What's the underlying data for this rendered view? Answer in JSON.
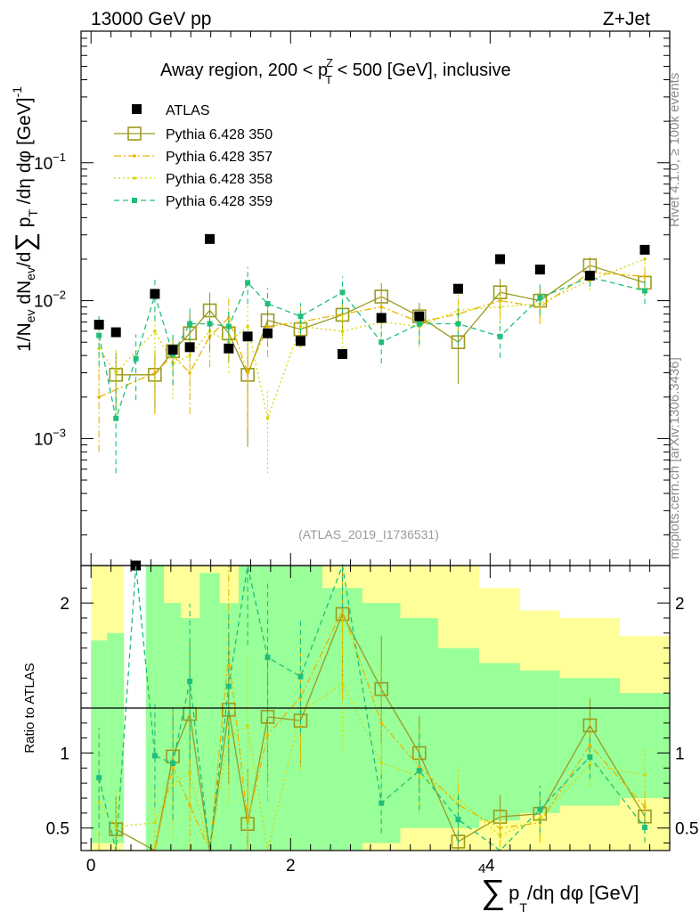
{
  "header": {
    "left": "13000 GeV pp",
    "right": "Z+Jet"
  },
  "side_labels": {
    "rivet": "Rivet 4.1.0, ≥ 100k events",
    "mcplots": "mcplots.cern.ch [arXiv:1306.3436]"
  },
  "chart_data": {
    "type": "scatter",
    "title": "Away region, 200 < p_T^Z < 500 [GeV], inclusive",
    "title_parts": {
      "a": "Away region, 200 < p",
      "sup": "Z",
      "sub": "T",
      "b": " < 500 [GeV], inclusive"
    },
    "analysis_id": "(ATLAS_2019_I1736531)",
    "xlabel": "∑ p_T/dη dφ [GeV]",
    "xlabel_parts": {
      "sum": "∑",
      "p": "p",
      "sub": "T",
      "rest": "/dη dφ [GeV]"
    },
    "ylabel_main": "1/N_ev dN_ev/d∑ p_T/dη dφ [GeV]^-1",
    "ylabel_ratio": "Ratio to ATLAS",
    "xlim": [
      -0.1,
      5.8
    ],
    "ylim_main": [
      0.00012,
      0.9
    ],
    "ylim_ratio": [
      0.35,
      2.25
    ],
    "x_ticks": [
      0,
      2,
      4
    ],
    "y_ticks_main": [
      {
        "value": 0.001,
        "exp": "−3"
      },
      {
        "value": 0.01,
        "exp": "−2"
      },
      {
        "value": 0.1,
        "exp": "−1"
      }
    ],
    "y_ticks_ratio": [
      0.5,
      1,
      2
    ],
    "x": [
      0.08,
      0.25,
      0.45,
      0.64,
      0.82,
      0.99,
      1.19,
      1.38,
      1.57,
      1.77,
      2.1,
      2.52,
      2.91,
      3.29,
      3.68,
      4.1,
      4.5,
      5.0,
      5.55
    ],
    "atlas": [
      0.0067,
      0.0059,
      0.00012,
      0.0112,
      0.0044,
      0.0046,
      0.028,
      0.0045,
      0.0055,
      0.0058,
      0.0051,
      0.0041,
      0.0075,
      0.0077,
      0.0122,
      0.02,
      0.0168,
      0.0152,
      0.0234
    ],
    "series": [
      {
        "name": "Pythia 6.428 350",
        "color": "#9a9a1e",
        "dash": "",
        "marker": "open-square",
        "values": [
          null,
          0.0029,
          null,
          0.0029,
          0.0043,
          0.0058,
          0.0085,
          0.0058,
          0.0029,
          0.0072,
          0.0062,
          0.0079,
          0.0107,
          0.0077,
          0.005,
          0.0115,
          0.01,
          0.018,
          0.0135
        ],
        "err": [
          0,
          0.45,
          0,
          0.45,
          0.3,
          0.38,
          0.35,
          0.38,
          0.7,
          0.35,
          0.25,
          0.3,
          0.25,
          0.25,
          0.5,
          0.25,
          0.25,
          0.15,
          0.2
        ]
      },
      {
        "name": "Pythia 6.428 357",
        "color": "#e8b600",
        "dash": "8,3,2,3",
        "marker": "small",
        "values": [
          0.002,
          null,
          null,
          0.003,
          0.004,
          0.003,
          0.0055,
          0.0075,
          0.003,
          0.0065,
          0.007,
          0.008,
          0.009,
          0.007,
          0.008,
          0.01,
          0.009,
          0.016,
          0.015
        ],
        "err": [
          0.6,
          0,
          0,
          0.5,
          0.4,
          0.5,
          0.4,
          0.4,
          0.6,
          0.4,
          0.3,
          0.3,
          0.3,
          0.3,
          0.3,
          0.25,
          0.25,
          0.15,
          0.2
        ]
      },
      {
        "name": "Pythia 6.428 358",
        "color": "#d6d600",
        "dash": "2,3",
        "marker": "small",
        "values": [
          0.0045,
          0.003,
          null,
          0.006,
          0.0035,
          0.004,
          0.006,
          0.005,
          0.0065,
          0.0014,
          0.0065,
          0.006,
          0.007,
          0.0065,
          0.0085,
          0.009,
          0.0095,
          0.014,
          0.02
        ],
        "err": [
          0.5,
          0.5,
          0,
          0.4,
          0.45,
          0.45,
          0.4,
          0.4,
          0.4,
          0.6,
          0.3,
          0.3,
          0.3,
          0.3,
          0.3,
          0.25,
          0.25,
          0.15,
          0.2
        ]
      },
      {
        "name": "Pythia 6.428 359",
        "color": "#1fbf7a",
        "dash": "6,4",
        "marker": "filled-square",
        "values": [
          0.0056,
          0.0014,
          0.0038,
          0.011,
          0.0041,
          0.0068,
          0.0068,
          0.0065,
          0.0135,
          0.0095,
          0.0077,
          0.0115,
          0.005,
          0.0068,
          0.0068,
          0.0055,
          0.0105,
          0.0148,
          0.0118
        ],
        "err": [
          0.4,
          0.6,
          0.5,
          0.35,
          0.4,
          0.35,
          0.35,
          0.35,
          0.3,
          0.3,
          0.25,
          0.3,
          0.3,
          0.3,
          0.3,
          0.3,
          0.25,
          0.15,
          0.2
        ]
      }
    ],
    "atlas_band_edges": [
      0,
      0.16,
      0.33,
      0.55,
      0.73,
      0.9,
      1.09,
      1.29,
      1.48,
      1.67,
      1.87,
      2.32,
      2.72,
      3.1,
      3.48,
      3.89,
      4.3,
      4.7,
      5.3,
      5.8
    ],
    "atlas_band_stat": [
      [
        0.4,
        1.75
      ],
      [
        0.4,
        1.8
      ],
      [
        null,
        null
      ],
      [
        0.35,
        2.5
      ],
      [
        0.35,
        2.0
      ],
      [
        0.35,
        1.9
      ],
      [
        0.35,
        2.2
      ],
      [
        0.35,
        2.0
      ],
      [
        0.35,
        2.3
      ],
      [
        0.35,
        2.4
      ],
      [
        0.35,
        2.5
      ],
      [
        0.35,
        2.1
      ],
      [
        0.4,
        2.0
      ],
      [
        0.5,
        1.9
      ],
      [
        0.5,
        1.7
      ],
      [
        0.55,
        1.6
      ],
      [
        0.6,
        1.55
      ],
      [
        0.65,
        1.5
      ],
      [
        0.7,
        1.4
      ]
    ],
    "atlas_band_tot": [
      [
        0.35,
        2.25
      ],
      [
        0.35,
        2.25
      ],
      [
        null,
        null
      ],
      [
        0.35,
        2.25
      ],
      [
        0.35,
        2.25
      ],
      [
        0.35,
        2.25
      ],
      [
        0.35,
        2.25
      ],
      [
        0.35,
        2.25
      ],
      [
        0.35,
        2.25
      ],
      [
        0.35,
        2.25
      ],
      [
        0.35,
        2.25
      ],
      [
        0.35,
        2.25
      ],
      [
        0.35,
        2.25
      ],
      [
        0.35,
        2.25
      ],
      [
        0.35,
        2.25
      ],
      [
        0.35,
        2.1
      ],
      [
        0.35,
        1.95
      ],
      [
        0.35,
        1.9
      ],
      [
        0.35,
        1.78
      ]
    ],
    "legend_position": "top-left",
    "legend_atlas": "ATLAS"
  }
}
